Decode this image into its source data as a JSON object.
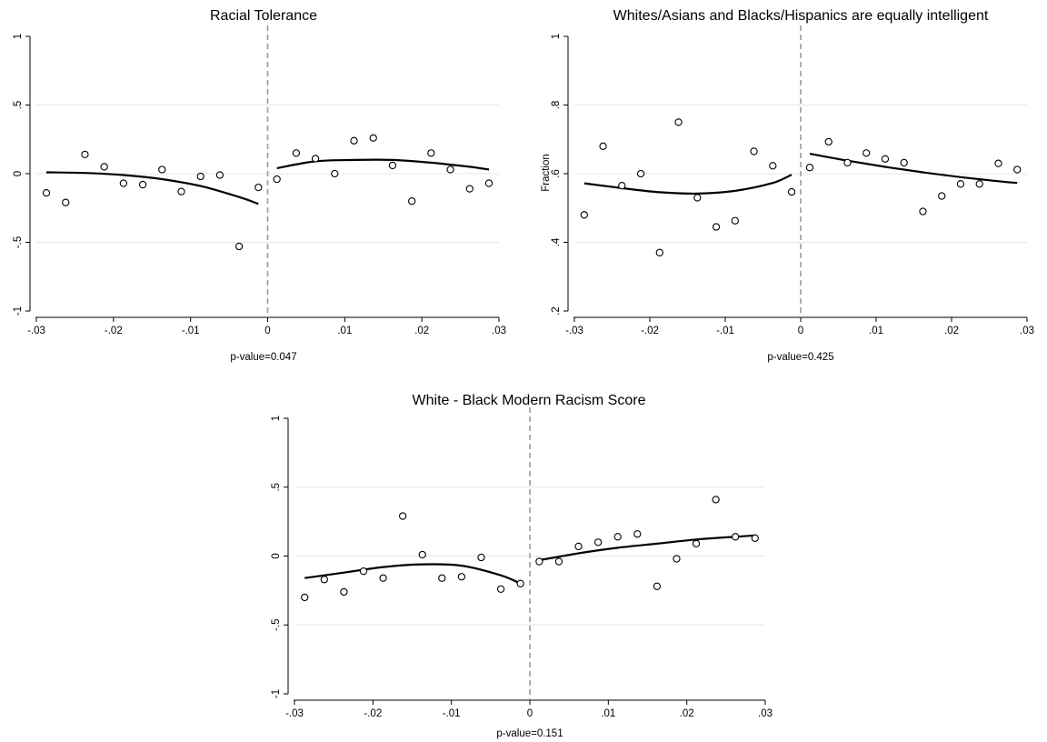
{
  "chart_data": [
    {
      "type": "scatter",
      "title": "Racial Tolerance",
      "xlabel": "",
      "ylabel": "",
      "note": "p-value=0.047",
      "xlim": [
        -0.03,
        0.03
      ],
      "ylim": [
        -1,
        1
      ],
      "x_ticks": [
        -0.03,
        -0.02,
        -0.01,
        0,
        0.01,
        0.02,
        0.03
      ],
      "x_tick_labels": [
        "-.03",
        "-.02",
        "-.01",
        "0",
        ".01",
        ".02",
        ".03"
      ],
      "y_ticks": [
        -1,
        -0.5,
        0,
        0.5,
        1
      ],
      "y_tick_labels": [
        "-1",
        "-.5",
        "0",
        ".5",
        "1"
      ],
      "cutoff": 0,
      "grid": "horizontal",
      "points": {
        "x": [
          -0.0287,
          -0.0262,
          -0.0237,
          -0.0212,
          -0.0187,
          -0.0162,
          -0.0137,
          -0.0112,
          -0.0087,
          -0.0062,
          -0.0037,
          -0.0012,
          0.0012,
          0.0037,
          0.0062,
          0.0087,
          0.0112,
          0.0137,
          0.0162,
          0.0187,
          0.0212,
          0.0237,
          0.0262,
          0.0287
        ],
        "y": [
          -0.14,
          -0.21,
          0.14,
          0.05,
          -0.07,
          -0.08,
          0.03,
          -0.13,
          -0.02,
          -0.01,
          -0.53,
          -0.1,
          -0.04,
          0.15,
          0.11,
          0.0,
          0.24,
          0.26,
          0.06,
          -0.2,
          0.15,
          0.03,
          -0.11,
          -0.07
        ]
      },
      "fit_left": {
        "x": [
          -0.0287,
          -0.0237,
          -0.0187,
          -0.0137,
          -0.0087,
          -0.0037,
          -0.0012
        ],
        "y": [
          0.01,
          0.005,
          -0.01,
          -0.04,
          -0.09,
          -0.17,
          -0.22
        ]
      },
      "fit_right": {
        "x": [
          0.0012,
          0.0062,
          0.0112,
          0.0162,
          0.0212,
          0.0262,
          0.0287
        ],
        "y": [
          0.04,
          0.09,
          0.1,
          0.1,
          0.08,
          0.05,
          0.03
        ]
      }
    },
    {
      "type": "scatter",
      "title": "Whites/Asians and Blacks/Hispanics are equally intelligent",
      "xlabel": "",
      "ylabel": "Fraction",
      "note": "p-value=0.425",
      "xlim": [
        -0.03,
        0.03
      ],
      "ylim": [
        0.2,
        1
      ],
      "x_ticks": [
        -0.03,
        -0.02,
        -0.01,
        0,
        0.01,
        0.02,
        0.03
      ],
      "x_tick_labels": [
        "-.03",
        "-.02",
        "-.01",
        "0",
        ".01",
        ".02",
        ".03"
      ],
      "y_ticks": [
        0.2,
        0.4,
        0.6,
        0.8,
        1
      ],
      "y_tick_labels": [
        ".2",
        ".4",
        ".6",
        ".8",
        "1"
      ],
      "cutoff": 0,
      "grid": "horizontal",
      "points": {
        "x": [
          -0.0287,
          -0.0262,
          -0.0237,
          -0.0212,
          -0.0187,
          -0.0162,
          -0.0137,
          -0.0112,
          -0.0087,
          -0.0062,
          -0.0037,
          -0.0012,
          0.0012,
          0.0037,
          0.0062,
          0.0087,
          0.0112,
          0.0137,
          0.0162,
          0.0187,
          0.0212,
          0.0237,
          0.0262,
          0.0287
        ],
        "y": [
          0.48,
          0.68,
          0.565,
          0.6,
          0.37,
          0.75,
          0.53,
          0.445,
          0.463,
          0.665,
          0.623,
          0.547,
          0.618,
          0.693,
          0.632,
          0.66,
          0.643,
          0.632,
          0.49,
          0.535,
          0.57,
          0.57,
          0.63,
          0.612
        ]
      },
      "fit_left": {
        "x": [
          -0.0287,
          -0.0237,
          -0.0187,
          -0.0137,
          -0.0087,
          -0.0037,
          -0.0012
        ],
        "y": [
          0.572,
          0.558,
          0.546,
          0.542,
          0.55,
          0.573,
          0.597
        ]
      },
      "fit_right": {
        "x": [
          0.0012,
          0.0062,
          0.0112,
          0.0162,
          0.0212,
          0.0262,
          0.0287
        ],
        "y": [
          0.658,
          0.638,
          0.62,
          0.604,
          0.59,
          0.578,
          0.573
        ]
      }
    },
    {
      "type": "scatter",
      "title": "White - Black Modern Racism Score",
      "xlabel": "",
      "ylabel": "",
      "note": "p-value=0.151",
      "xlim": [
        -0.03,
        0.03
      ],
      "ylim": [
        -1,
        1
      ],
      "x_ticks": [
        -0.03,
        -0.02,
        -0.01,
        0,
        0.01,
        0.02,
        0.03
      ],
      "x_tick_labels": [
        "-.03",
        "-.02",
        "-.01",
        "0",
        ".01",
        ".02",
        ".03"
      ],
      "y_ticks": [
        -1,
        -0.5,
        0,
        0.5,
        1
      ],
      "y_tick_labels": [
        "-1",
        "-.5",
        "0",
        ".5",
        "1"
      ],
      "cutoff": 0,
      "grid": "horizontal",
      "points": {
        "x": [
          -0.0287,
          -0.0262,
          -0.0237,
          -0.0212,
          -0.0187,
          -0.0162,
          -0.0137,
          -0.0112,
          -0.0087,
          -0.0062,
          -0.0037,
          -0.0012,
          0.0012,
          0.0037,
          0.0062,
          0.0087,
          0.0112,
          0.0137,
          0.0162,
          0.0187,
          0.0212,
          0.0237,
          0.0262,
          0.0287
        ],
        "y": [
          -0.3,
          -0.17,
          -0.26,
          -0.11,
          -0.16,
          0.29,
          0.01,
          -0.16,
          -0.15,
          -0.01,
          -0.24,
          -0.2,
          -0.04,
          -0.04,
          0.07,
          0.1,
          0.14,
          0.16,
          -0.22,
          -0.02,
          0.09,
          0.41,
          0.14,
          0.13
        ]
      },
      "fit_left": {
        "x": [
          -0.0287,
          -0.0237,
          -0.0187,
          -0.0137,
          -0.0087,
          -0.0037,
          -0.0012
        ],
        "y": [
          -0.16,
          -0.12,
          -0.08,
          -0.06,
          -0.07,
          -0.14,
          -0.2
        ]
      },
      "fit_right": {
        "x": [
          0.0012,
          0.0062,
          0.0112,
          0.0162,
          0.0212,
          0.0262,
          0.0287
        ],
        "y": [
          -0.03,
          0.02,
          0.06,
          0.09,
          0.12,
          0.14,
          0.15
        ]
      }
    }
  ]
}
